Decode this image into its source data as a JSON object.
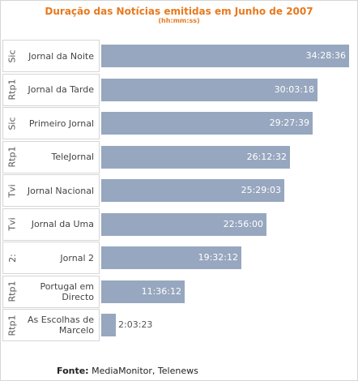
{
  "chart_data": {
    "type": "bar",
    "orientation": "horizontal",
    "title": "Duração das Notícias emitidas em Junho de 2007",
    "subtitle": "(hh:mm:ss)",
    "categories": [
      {
        "channel": "Sic",
        "program": "Jornal da Noite"
      },
      {
        "channel": "Rtp1",
        "program": "Jornal da Tarde"
      },
      {
        "channel": "Sic",
        "program": "Primeiro Jornal"
      },
      {
        "channel": "Rtp1",
        "program": "TeleJornal"
      },
      {
        "channel": "Tvi",
        "program": "Jornal Nacional"
      },
      {
        "channel": "Tvi",
        "program": "Jornal da Uma"
      },
      {
        "channel": "2:",
        "program": "Jornal 2"
      },
      {
        "channel": "Rtp1",
        "program": "Portugal em Directo"
      },
      {
        "channel": "Rtp1",
        "program": "As Escolhas de Marcelo"
      }
    ],
    "values": [
      "34:28:36",
      "30:03:18",
      "29:27:39",
      "26:12:32",
      "25:29:03",
      "22:56:00",
      "19:32:12",
      "11:36:12",
      "2:03:23"
    ],
    "value_unit": "hh:mm:ss",
    "grid": false,
    "legend": "none"
  },
  "footer": {
    "label": "Fonte:",
    "text": "MediaMonitor, Telenews"
  },
  "colors": {
    "bar": "#97a7bf",
    "title": "#e8791e"
  }
}
